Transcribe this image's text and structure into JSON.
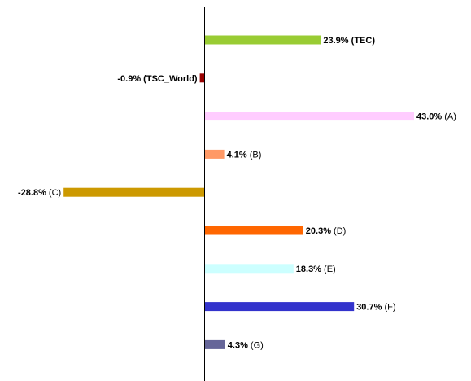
{
  "chart_data": {
    "type": "bar",
    "orientation": "horizontal",
    "categories": [
      "TEC",
      "TSC_World",
      "A",
      "B",
      "C",
      "D",
      "E",
      "F",
      "G"
    ],
    "values": [
      23.9,
      -0.9,
      43.0,
      4.1,
      -28.8,
      20.3,
      18.3,
      30.7,
      4.3
    ],
    "value_labels": [
      "23.9%",
      "-0.9%",
      "43.0%",
      "4.1%",
      "-28.8%",
      "20.3%",
      "18.3%",
      "30.7%",
      "4.3%"
    ],
    "category_labels": [
      "(TEC)",
      "(TSC_World)",
      "(A)",
      "(B)",
      "(C)",
      "(D)",
      "(E)",
      "(F)",
      "(G)"
    ],
    "category_label_bold": [
      true,
      true,
      false,
      false,
      false,
      false,
      false,
      false,
      false
    ],
    "colors": [
      "#99CC33",
      "#990000",
      "#FFCCFF",
      "#FF9966",
      "#CC9900",
      "#FF6600",
      "#CCFFFF",
      "#3333CC",
      "#666699"
    ],
    "unit": "%",
    "grid": false,
    "legend": "none"
  }
}
